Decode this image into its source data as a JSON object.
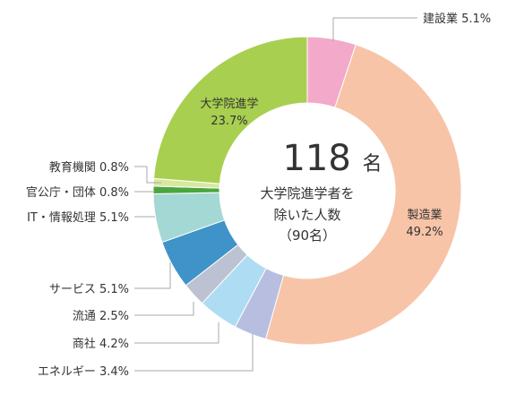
{
  "chart_data": {
    "type": "donut",
    "start_angle_deg": 0,
    "direction": "clockwise",
    "unit": "%",
    "center": {
      "number": "118",
      "unit": "名",
      "caption_lines": [
        "大学院進学者を",
        "除いた人数",
        "（90名）"
      ]
    },
    "slices": [
      {
        "label": "建設業",
        "value": 5.1,
        "color": "#f3a9c9",
        "label_mode": "outside"
      },
      {
        "label": "製造業",
        "value": 49.2,
        "color": "#f7c4a8",
        "label_mode": "inside"
      },
      {
        "label": "エネルギー",
        "value": 3.4,
        "color": "#b7bee0",
        "label_mode": "outside"
      },
      {
        "label": "商社",
        "value": 4.2,
        "color": "#aedcf3",
        "label_mode": "outside"
      },
      {
        "label": "流通",
        "value": 2.5,
        "color": "#bcc2d2",
        "label_mode": "outside"
      },
      {
        "label": "サービス",
        "value": 5.1,
        "color": "#3f93c8",
        "label_mode": "outside"
      },
      {
        "label": "IT・情報処理",
        "value": 5.1,
        "color": "#a4d8d4",
        "label_mode": "outside"
      },
      {
        "label": "官公庁・団体",
        "value": 0.8,
        "color": "#4aa63f",
        "label_mode": "outside"
      },
      {
        "label": "教育機関",
        "value": 0.8,
        "color": "#d9e8a0",
        "label_mode": "outside"
      },
      {
        "label": "大学院進学",
        "value": 23.7,
        "color": "#a8cf4f",
        "label_mode": "inside"
      }
    ]
  }
}
